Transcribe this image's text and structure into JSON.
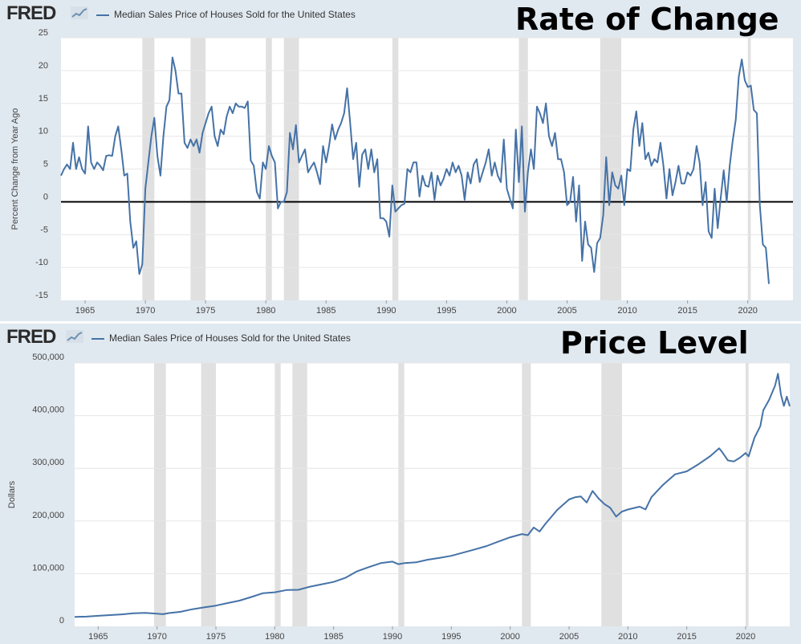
{
  "chart_data": [
    {
      "type": "line",
      "title": "Rate of Change",
      "brand": "FRED",
      "legend": "Median Sales Price of Houses Sold for the United States",
      "ylabel": "Percent Change from Year Ago",
      "xlabel": "",
      "xlim": [
        1963.0,
        2023.75
      ],
      "ylim": [
        -15,
        25
      ],
      "yticks": [
        25,
        20,
        15,
        10,
        5,
        0,
        -5,
        -10,
        -15
      ],
      "xticks": [
        1965,
        1970,
        1975,
        1980,
        1985,
        1990,
        1995,
        2000,
        2005,
        2010,
        2015,
        2020
      ],
      "zero_line": true,
      "color": "#4572a7",
      "recessions": [
        [
          1969.75,
          1970.75
        ],
        [
          1973.75,
          1975.0
        ],
        [
          1980.0,
          1980.5
        ],
        [
          1981.5,
          1982.75
        ],
        [
          1990.5,
          1991.0
        ],
        [
          2001.0,
          2001.75
        ],
        [
          2007.75,
          2009.5
        ],
        [
          2020.0,
          2020.25
        ]
      ],
      "series": [
        {
          "name": "Median Sales Price of Houses Sold for the United States",
          "x_start": 1963.0,
          "x_step": 0.25,
          "values": [
            4,
            5,
            5.7,
            5,
            9,
            5,
            6.8,
            5,
            4.3,
            11.5,
            6,
            5,
            6,
            5.5,
            4.8,
            7,
            7.1,
            7,
            10,
            11.5,
            8,
            4,
            4.3,
            -3,
            -7,
            -6,
            -11,
            -9.5,
            2,
            6,
            10,
            12.8,
            7,
            4,
            10,
            14.5,
            15.5,
            22,
            20,
            16.5,
            16.5,
            9,
            8.2,
            9.5,
            8.5,
            9.5,
            7.5,
            10.5,
            12,
            13.5,
            14.5,
            10,
            8.5,
            11,
            10.3,
            13,
            14.5,
            13.5,
            15,
            14.5,
            14.5,
            14.3,
            15.3,
            6.3,
            5.5,
            1.5,
            0.5,
            6,
            5,
            8.5,
            7,
            6,
            -1,
            0,
            0,
            1.5,
            10.5,
            8,
            11.7,
            6,
            7,
            8,
            4.5,
            5.3,
            6,
            4.5,
            2.7,
            8.5,
            6,
            8.5,
            11.8,
            9.5,
            11,
            12,
            13.5,
            17.3,
            12,
            6.5,
            9,
            2.3,
            7.2,
            8,
            5,
            8,
            4.5,
            6.5,
            -2.5,
            -2.5,
            -3,
            -5.3,
            2.5,
            -1.5,
            -1,
            -0.5,
            -0.3,
            5,
            4.5,
            6,
            6,
            0.8,
            4,
            2.5,
            2.3,
            4.5,
            0.3,
            4,
            2.5,
            3.5,
            5,
            4,
            6,
            4.5,
            5.5,
            4,
            0.3,
            4.5,
            2.8,
            5.7,
            6.5,
            3,
            4.5,
            6,
            8,
            4,
            6,
            4,
            3,
            9.5,
            2,
            0.5,
            -1,
            11,
            3,
            11.5,
            -1.5,
            4.5,
            8,
            5,
            14.5,
            13.5,
            12,
            15,
            10,
            8.5,
            10.5,
            6.5,
            6.5,
            4.5,
            -0.5,
            0,
            3.8,
            -3,
            2.5,
            -9,
            -3,
            -6.5,
            -7,
            -10.7,
            -6.3,
            -5.5,
            -2,
            6.8,
            -0.5,
            4.5,
            2.5,
            2,
            4,
            -0.5,
            5,
            4.7,
            11,
            13.8,
            8.5,
            12,
            6.5,
            7.5,
            5.5,
            6.5,
            6,
            9,
            5.5,
            0.5,
            5,
            1,
            3,
            5.5,
            2.8,
            2.8,
            4.5,
            4,
            5,
            8.5,
            6,
            -0.5,
            3,
            -4.5,
            -5.5,
            2,
            -4,
            0.5,
            4.8,
            0,
            5.5,
            9.3,
            12.5,
            19,
            21.7,
            18.5,
            17.5,
            17.7,
            14,
            13.5,
            -0.5,
            -6.5,
            -7,
            -12.5
          ]
        }
      ]
    },
    {
      "type": "line",
      "title": "Price Level",
      "brand": "FRED",
      "legend": "Median Sales Price of Houses Sold for the United States",
      "ylabel": "Dollars",
      "xlabel": "",
      "xlim": [
        1963.0,
        2023.75
      ],
      "ylim": [
        0,
        500000
      ],
      "yticks": [
        500000,
        400000,
        300000,
        200000,
        100000,
        0
      ],
      "ytick_labels": [
        "500,000",
        "400,000",
        "300,000",
        "200,000",
        "100,000",
        "0"
      ],
      "xticks": [
        1965,
        1970,
        1975,
        1980,
        1985,
        1990,
        1995,
        2000,
        2005,
        2010,
        2015,
        2020
      ],
      "color": "#4572a7",
      "recessions": [
        [
          1969.75,
          1970.75
        ],
        [
          1973.75,
          1975.0
        ],
        [
          1980.0,
          1980.5
        ],
        [
          1981.5,
          1982.75
        ],
        [
          1990.5,
          1991.0
        ],
        [
          2001.0,
          2001.75
        ],
        [
          2007.75,
          2009.5
        ],
        [
          2020.0,
          2020.25
        ]
      ],
      "series": [
        {
          "name": "Median Sales Price of Houses Sold for the United States",
          "points": [
            [
              1963.0,
              17800
            ],
            [
              1964.0,
              18500
            ],
            [
              1965.0,
              20000
            ],
            [
              1966.0,
              21400
            ],
            [
              1967.0,
              22700
            ],
            [
              1968.0,
              24700
            ],
            [
              1969.0,
              25600
            ],
            [
              1970.0,
              23900
            ],
            [
              1970.5,
              23000
            ],
            [
              1971.0,
              25200
            ],
            [
              1972.0,
              27600
            ],
            [
              1973.0,
              32500
            ],
            [
              1974.0,
              35900
            ],
            [
              1975.0,
              39300
            ],
            [
              1976.0,
              44200
            ],
            [
              1977.0,
              48800
            ],
            [
              1978.0,
              55700
            ],
            [
              1979.0,
              62900
            ],
            [
              1980.0,
              64600
            ],
            [
              1981.0,
              68900
            ],
            [
              1982.0,
              69300
            ],
            [
              1983.0,
              75300
            ],
            [
              1984.0,
              79900
            ],
            [
              1985.0,
              84300
            ],
            [
              1986.0,
              92000
            ],
            [
              1987.0,
              104500
            ],
            [
              1988.0,
              112500
            ],
            [
              1989.0,
              120000
            ],
            [
              1990.0,
              122900
            ],
            [
              1990.5,
              118000
            ],
            [
              1991.0,
              120000
            ],
            [
              1992.0,
              121500
            ],
            [
              1993.0,
              126500
            ],
            [
              1994.0,
              130000
            ],
            [
              1995.0,
              133900
            ],
            [
              1996.0,
              140000
            ],
            [
              1997.0,
              146000
            ],
            [
              1998.0,
              152500
            ],
            [
              1999.0,
              161000
            ],
            [
              2000.0,
              169000
            ],
            [
              2001.0,
              175200
            ],
            [
              2001.5,
              173000
            ],
            [
              2002.0,
              187600
            ],
            [
              2002.5,
              180000
            ],
            [
              2003.0,
              195000
            ],
            [
              2004.0,
              221000
            ],
            [
              2005.0,
              240900
            ],
            [
              2005.5,
              245000
            ],
            [
              2006.0,
              246500
            ],
            [
              2006.5,
              235000
            ],
            [
              2007.0,
              257000
            ],
            [
              2007.5,
              243000
            ],
            [
              2008.0,
              232100
            ],
            [
              2008.5,
              225000
            ],
            [
              2009.0,
              208400
            ],
            [
              2009.5,
              218000
            ],
            [
              2010.0,
              221800
            ],
            [
              2011.0,
              227200
            ],
            [
              2011.5,
              222000
            ],
            [
              2012.0,
              245200
            ],
            [
              2013.0,
              268900
            ],
            [
              2014.0,
              288500
            ],
            [
              2015.0,
              294200
            ],
            [
              2016.0,
              307800
            ],
            [
              2017.0,
              323100
            ],
            [
              2017.75,
              337900
            ],
            [
              2018.0,
              331000
            ],
            [
              2018.5,
              315000
            ],
            [
              2019.0,
              313000
            ],
            [
              2019.5,
              320000
            ],
            [
              2020.0,
              329000
            ],
            [
              2020.25,
              322600
            ],
            [
              2020.75,
              358000
            ],
            [
              2021.25,
              380000
            ],
            [
              2021.5,
              410000
            ],
            [
              2022.0,
              430000
            ],
            [
              2022.5,
              457000
            ],
            [
              2022.75,
              479500
            ],
            [
              2023.0,
              440000
            ],
            [
              2023.25,
              418500
            ],
            [
              2023.5,
              436000
            ],
            [
              2023.75,
              417700
            ]
          ]
        }
      ]
    }
  ]
}
